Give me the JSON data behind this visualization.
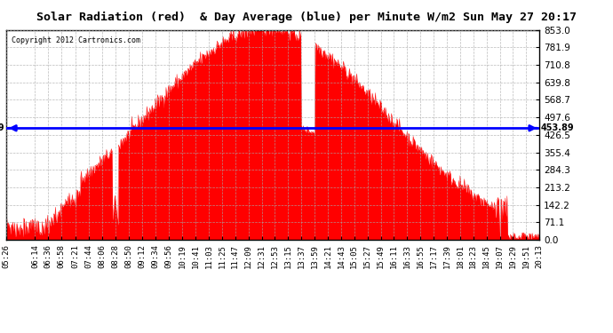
{
  "title": "Solar Radiation (red)  & Day Average (blue) per Minute W/m2 Sun May 27 20:17",
  "copyright": "Copyright 2012 Cartronics.com",
  "y_max": 853.0,
  "y_min": 0.0,
  "y_ticks": [
    0.0,
    71.1,
    142.2,
    213.2,
    284.3,
    355.4,
    426.5,
    497.6,
    568.7,
    639.8,
    710.8,
    781.9,
    853.0
  ],
  "day_average": 453.89,
  "fill_color": "#FF0000",
  "avg_line_color": "#0000FF",
  "background_color": "#FFFFFF",
  "grid_color": "#AAAAAA",
  "title_bg": "#D3D3D3",
  "x_tick_labels": [
    "05:26",
    "06:14",
    "06:36",
    "06:58",
    "07:21",
    "07:44",
    "08:06",
    "08:28",
    "08:50",
    "09:12",
    "09:34",
    "09:56",
    "10:19",
    "10:41",
    "11:03",
    "11:25",
    "11:47",
    "12:09",
    "12:31",
    "12:53",
    "13:15",
    "13:37",
    "13:59",
    "14:21",
    "14:43",
    "15:05",
    "15:27",
    "15:49",
    "16:11",
    "16:33",
    "16:55",
    "17:17",
    "17:39",
    "18:01",
    "18:23",
    "18:45",
    "19:07",
    "19:29",
    "19:51",
    "20:13"
  ]
}
